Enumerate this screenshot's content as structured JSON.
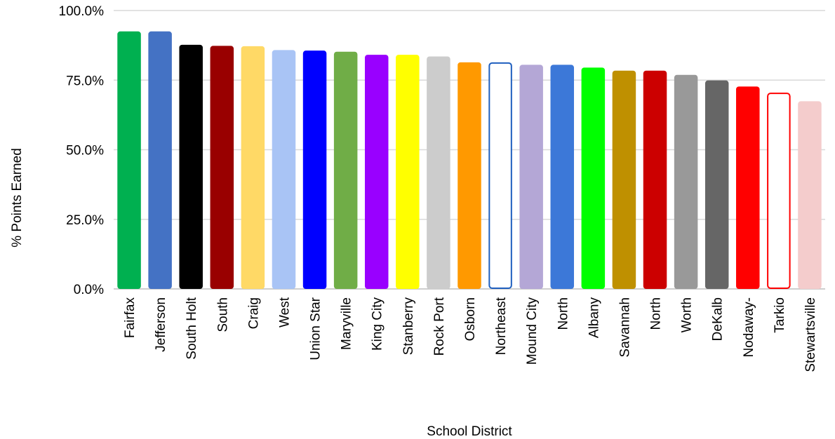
{
  "chart_data": {
    "type": "bar",
    "title": "",
    "xlabel": "School District",
    "ylabel": "% Points Earned",
    "ylim": [
      0,
      100
    ],
    "yticks": [
      0,
      25,
      50,
      75,
      100
    ],
    "ytick_labels": [
      "0.0%",
      "25.0%",
      "50.0%",
      "75.0%",
      "100.0%"
    ],
    "grid": true,
    "legend": "none",
    "categories": [
      "Fairfax",
      "Jefferson",
      "South Holt",
      "South",
      "Craig",
      "West",
      "Union Star",
      "Maryville",
      "King City",
      "Stanberry",
      "Rock Port",
      "Osborn",
      "Northeast",
      "Mound City",
      "North",
      "Albany",
      "Savannah",
      "North",
      "Worth",
      "DeKalb",
      "Nodaway-",
      "Tarkio",
      "Stewartsville"
    ],
    "values": [
      92.5,
      92.5,
      87.7,
      87.3,
      87.2,
      85.8,
      85.6,
      85.2,
      84.1,
      84.1,
      83.5,
      81.4,
      81.4,
      80.5,
      80.5,
      79.5,
      78.4,
      78.4,
      76.9,
      74.9,
      72.7,
      70.5,
      67.4
    ],
    "bar_fills": [
      "#00b050",
      "#4472c4",
      "#000000",
      "#990000",
      "#ffd966",
      "#a9c4f5",
      "#0000ff",
      "#70ad47",
      "#9900ff",
      "#ffff00",
      "#cccccc",
      "#ff9900",
      "#ffffff",
      "#b4a7d6",
      "#3c78d8",
      "#00ff00",
      "#bf9000",
      "#cc0000",
      "#999999",
      "#666666",
      "#ff0000",
      "#ffffff",
      "#f4cccc"
    ],
    "bar_strokes": [
      "none",
      "none",
      "none",
      "none",
      "none",
      "none",
      "none",
      "none",
      "none",
      "none",
      "none",
      "none",
      "#1f5fbf",
      "none",
      "none",
      "none",
      "none",
      "none",
      "none",
      "none",
      "none",
      "#ff0000",
      "none"
    ],
    "gridline_color": "#d9d9d9",
    "axis_color": "#bfbfbf"
  }
}
